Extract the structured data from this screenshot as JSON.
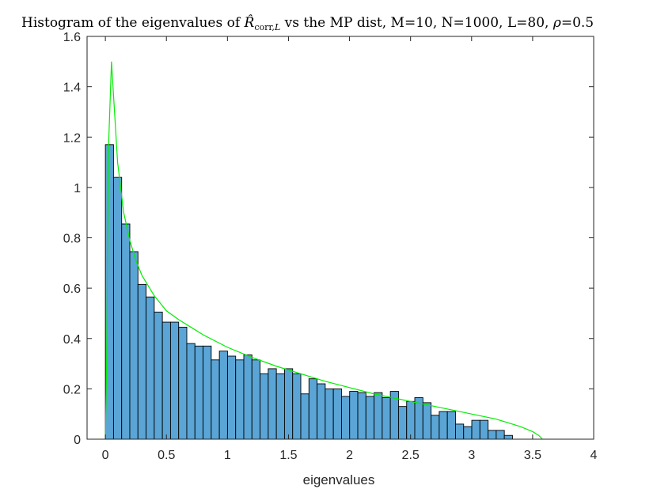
{
  "chart_data": {
    "type": "bar",
    "title": {
      "prefix": "Histogram of the eigenvalues of ",
      "symbol": "R̂",
      "symbol_subscript": "corr,",
      "symbol_subscript_italic": "L",
      "suffix": " vs the MP dist, M=10, N=1000, L=80, ",
      "rho_symbol": "ρ",
      "rho_value": "=0.5"
    },
    "xlabel": "eigenvalues",
    "ylabel": "",
    "xlim": [
      -0.15,
      4
    ],
    "ylim": [
      0,
      1.6
    ],
    "xticks": [
      "0",
      "0.5",
      "1",
      "1.5",
      "2",
      "2.5",
      "3",
      "3.5",
      "4"
    ],
    "yticks": [
      "0",
      "0.2",
      "0.4",
      "0.6",
      "0.8",
      "1",
      "1.2",
      "1.4",
      "1.6"
    ],
    "grid": false,
    "series": [
      {
        "type": "histogram",
        "bin_start": 0.0,
        "bin_width": 0.0667,
        "values": [
          1.17,
          1.04,
          0.855,
          0.745,
          0.615,
          0.565,
          0.505,
          0.465,
          0.465,
          0.445,
          0.38,
          0.37,
          0.37,
          0.315,
          0.35,
          0.33,
          0.315,
          0.335,
          0.315,
          0.26,
          0.28,
          0.26,
          0.28,
          0.26,
          0.18,
          0.24,
          0.22,
          0.2,
          0.2,
          0.17,
          0.19,
          0.185,
          0.17,
          0.185,
          0.165,
          0.19,
          0.13,
          0.15,
          0.165,
          0.145,
          0.095,
          0.11,
          0.11,
          0.06,
          0.05,
          0.075,
          0.075,
          0.035,
          0.035,
          0.015
        ],
        "color": "#5aa5d6",
        "edge_color": "#000000"
      },
      {
        "type": "line",
        "x": [
          0.0,
          0.0,
          0.01,
          0.025,
          0.05,
          0.075,
          0.1,
          0.15,
          0.2,
          0.25,
          0.3,
          0.4,
          0.5,
          0.6,
          0.7,
          0.8,
          1.0,
          1.2,
          1.4,
          1.6,
          1.8,
          2.0,
          2.2,
          2.4,
          2.6,
          2.8,
          3.0,
          3.2,
          3.3,
          3.4,
          3.5,
          3.55,
          3.58
        ],
        "y": [
          0.0,
          0.0,
          0.3,
          1.15,
          1.5,
          1.3,
          1.1,
          0.9,
          0.79,
          0.71,
          0.65,
          0.57,
          0.51,
          0.475,
          0.445,
          0.415,
          0.365,
          0.325,
          0.29,
          0.26,
          0.23,
          0.205,
          0.18,
          0.16,
          0.14,
          0.12,
          0.1,
          0.08,
          0.065,
          0.05,
          0.03,
          0.015,
          0.0
        ],
        "color": "#00ee00"
      }
    ]
  }
}
